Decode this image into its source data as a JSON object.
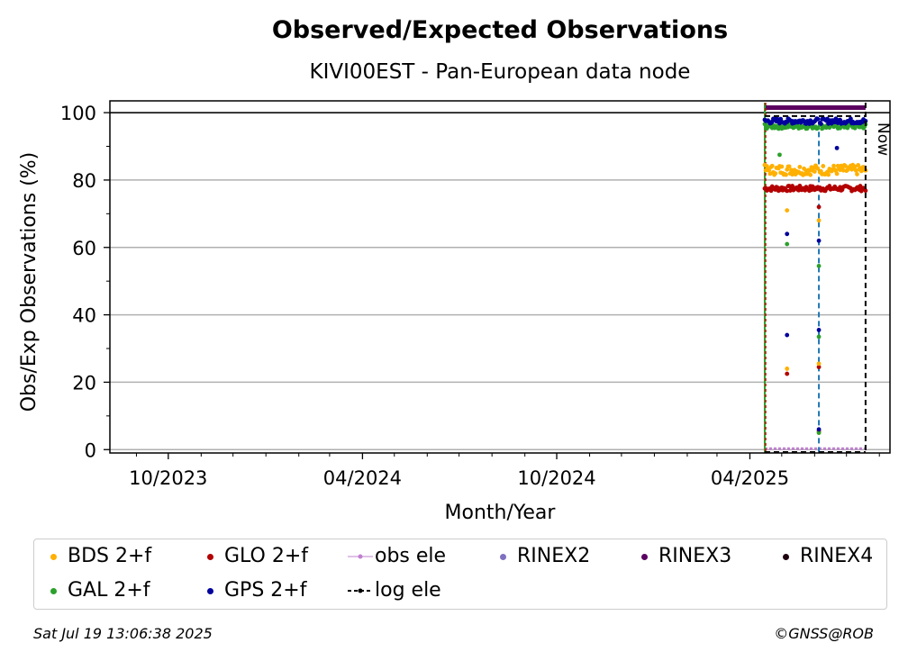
{
  "chart_data": {
    "type": "scatter",
    "title": "Observed/Expected Observations",
    "subtitle": "KIVI00EST - Pan-European data node",
    "xlabel": "Month/Year",
    "ylabel": "Obs/Exp Observations (%)",
    "ylim": [
      -1,
      103.5
    ],
    "xlim": [
      "2023-08-07",
      "2025-08-11"
    ],
    "yticks": [
      0,
      20,
      40,
      60,
      80,
      100
    ],
    "xticks": [
      {
        "date": "2023-10-01",
        "label": "10/2023"
      },
      {
        "date": "2024-04-01",
        "label": "04/2024"
      },
      {
        "date": "2024-10-01",
        "label": "10/2024"
      },
      {
        "date": "2025-04-01",
        "label": "04/2025"
      }
    ],
    "grid": "horizontal",
    "now_label": "Now",
    "now_date": "2025-07-19",
    "log_ele_dates": [
      "2025-04-15",
      "2025-06-05",
      "2025-07-19"
    ],
    "data_start": "2025-04-15",
    "data_end": "2025-07-19",
    "outage_date": "2025-06-05",
    "series": [
      {
        "name": "BDS 2+f",
        "color": "#ffb000",
        "level": 83,
        "dips": [
          {
            "date": "2025-05-06",
            "value": 71
          },
          {
            "date": "2025-05-06",
            "value": 24
          },
          {
            "date": "2025-06-05",
            "value": 25.5
          },
          {
            "date": "2025-06-05",
            "value": 68
          },
          {
            "date": "2025-06-05",
            "value": 5
          }
        ]
      },
      {
        "name": "GLO 2+f",
        "color": "#b30000",
        "level": 77.5,
        "dips": [
          {
            "date": "2025-05-06",
            "value": 22.5
          },
          {
            "date": "2025-06-05",
            "value": 72
          },
          {
            "date": "2025-06-05",
            "value": 24.5
          },
          {
            "date": "2025-06-05",
            "value": 5.5
          }
        ]
      },
      {
        "name": "obs ele",
        "color": "#c080d0",
        "kind": "line",
        "level": 0
      },
      {
        "name": "RINEX2",
        "color": "#8070c0",
        "kind": "none"
      },
      {
        "name": "RINEX3",
        "color": "#5b0060",
        "kind": "bar",
        "level": 101.5
      },
      {
        "name": "RINEX4",
        "color": "#200010",
        "kind": "none"
      },
      {
        "name": "GAL 2+f",
        "color": "#2ca02c",
        "level": 96,
        "dips": [
          {
            "date": "2025-04-29",
            "value": 87.5
          },
          {
            "date": "2025-05-06",
            "value": 61
          },
          {
            "date": "2025-06-05",
            "value": 54.5
          },
          {
            "date": "2025-06-05",
            "value": 33.5
          },
          {
            "date": "2025-06-05",
            "value": 5
          }
        ]
      },
      {
        "name": "GPS 2+f",
        "color": "#00009c",
        "level": 97.5,
        "dips": [
          {
            "date": "2025-05-06",
            "value": 64
          },
          {
            "date": "2025-05-06",
            "value": 34
          },
          {
            "date": "2025-06-05",
            "value": 62
          },
          {
            "date": "2025-06-05",
            "value": 35.5
          },
          {
            "date": "2025-06-05",
            "value": 6
          },
          {
            "date": "2025-06-22",
            "value": 89.5
          }
        ]
      },
      {
        "name": "log ele",
        "color": "#000000",
        "kind": "dashed"
      }
    ]
  },
  "legend": {
    "items": [
      {
        "label": "BDS 2+f",
        "color": "#ffb000",
        "kind": "dot"
      },
      {
        "label": "GLO 2+f",
        "color": "#b30000",
        "kind": "dot"
      },
      {
        "label": "obs ele",
        "color": "#c080d0",
        "kind": "line"
      },
      {
        "label": "RINEX2",
        "color": "#8070c0",
        "kind": "dot"
      },
      {
        "label": "RINEX3",
        "color": "#5b0060",
        "kind": "dot"
      },
      {
        "label": "RINEX4",
        "color": "#200010",
        "kind": "dot"
      },
      {
        "label": "GAL 2+f",
        "color": "#2ca02c",
        "kind": "dot"
      },
      {
        "label": "GPS 2+f",
        "color": "#00009c",
        "kind": "dot"
      },
      {
        "label": "log ele",
        "color": "#000000",
        "kind": "dashed"
      }
    ]
  },
  "footer": {
    "timestamp": "Sat Jul 19 13:06:38 2025",
    "copyright": "©GNSS@ROB"
  }
}
